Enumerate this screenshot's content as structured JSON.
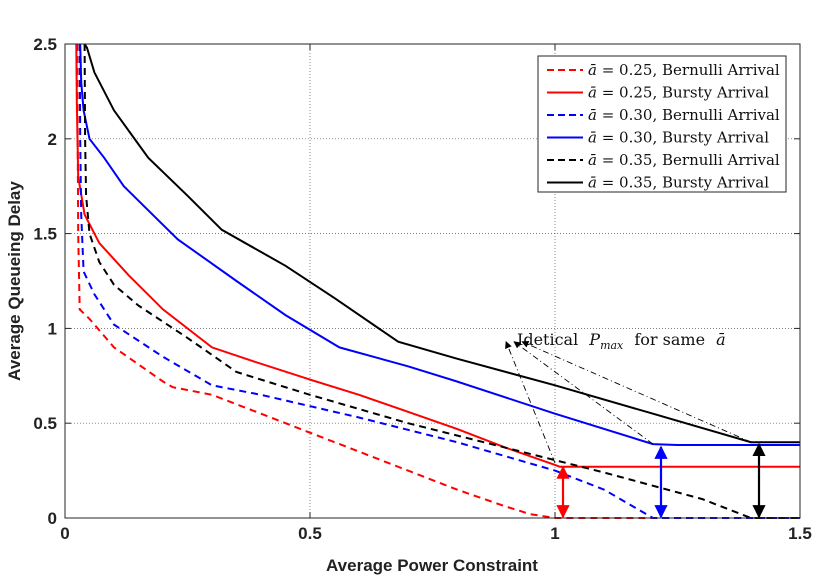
{
  "chart_data": {
    "type": "line",
    "title": "",
    "xlabel": "Average Power Constraint",
    "ylabel": "Average Queueing Delay",
    "xlim": [
      0,
      1.5
    ],
    "ylim": [
      0,
      2.5
    ],
    "xticks": [
      0,
      0.5,
      1,
      1.5
    ],
    "xtick_labels": [
      "0",
      "0.5",
      "1",
      "1.5"
    ],
    "yticks": [
      0,
      0.5,
      1,
      1.5,
      2,
      2.5
    ],
    "ytick_labels": [
      "0",
      "0.5",
      "1",
      "1.5",
      "2",
      "2.5"
    ],
    "grid": true,
    "legend_position": "top-right",
    "series": [
      {
        "name": "ā = 0.25, Bernulli Arrival",
        "label_value": "0.25",
        "label_suffix": "Bernulli Arrival",
        "color": "#ff0000",
        "dash": "dashed",
        "x": [
          0.025,
          0.026,
          0.027,
          0.03,
          0.05,
          0.1,
          0.2,
          0.22,
          0.3,
          0.4,
          0.5,
          0.6,
          0.7,
          0.8,
          0.9,
          0.95,
          1.0,
          1.5
        ],
        "y": [
          2.5,
          2.0,
          1.5,
          1.1,
          1.05,
          0.9,
          0.72,
          0.69,
          0.65,
          0.55,
          0.45,
          0.35,
          0.25,
          0.15,
          0.06,
          0.02,
          0.0,
          0.0
        ]
      },
      {
        "name": "ā = 0.25, Bursty Arrival",
        "label_value": "0.25",
        "label_suffix": "Bursty Arrival",
        "color": "#ff0000",
        "dash": "solid",
        "x": [
          0.023,
          0.024,
          0.027,
          0.04,
          0.07,
          0.13,
          0.2,
          0.3,
          0.38,
          0.5,
          0.6,
          0.7,
          0.8,
          0.9,
          1.0,
          1.01,
          1.5
        ],
        "y": [
          2.5,
          2.2,
          1.8,
          1.6,
          1.45,
          1.28,
          1.1,
          0.9,
          0.83,
          0.73,
          0.65,
          0.56,
          0.47,
          0.37,
          0.28,
          0.27,
          0.27
        ]
      },
      {
        "name": "ā = 0.30, Bernulli Arrival",
        "label_value": "0.30",
        "label_suffix": "Bernulli Arrival",
        "color": "#0000ff",
        "dash": "dashed",
        "x": [
          0.03,
          0.031,
          0.033,
          0.038,
          0.06,
          0.1,
          0.2,
          0.3,
          0.4,
          0.6,
          0.8,
          1.0,
          1.1,
          1.2,
          1.5
        ],
        "y": [
          2.5,
          2.0,
          1.6,
          1.3,
          1.18,
          1.02,
          0.85,
          0.7,
          0.65,
          0.53,
          0.4,
          0.25,
          0.15,
          0.0,
          0.0
        ]
      },
      {
        "name": "ā = 0.30, Bursty Arrival",
        "label_value": "0.30",
        "label_suffix": "Bursty Arrival",
        "color": "#0000ff",
        "dash": "solid",
        "x": [
          0.031,
          0.033,
          0.038,
          0.05,
          0.08,
          0.12,
          0.23,
          0.35,
          0.45,
          0.56,
          0.7,
          0.8,
          1.0,
          1.2,
          1.25,
          1.5
        ],
        "y": [
          2.5,
          2.3,
          2.15,
          2.0,
          1.9,
          1.75,
          1.47,
          1.25,
          1.07,
          0.9,
          0.8,
          0.72,
          0.55,
          0.39,
          0.385,
          0.385
        ]
      },
      {
        "name": "ā = 0.35, Bernulli Arrival",
        "label_value": "0.35",
        "label_suffix": "Bernulli Arrival",
        "color": "#000000",
        "dash": "dashed",
        "x": [
          0.04,
          0.041,
          0.043,
          0.05,
          0.07,
          0.1,
          0.15,
          0.25,
          0.35,
          0.5,
          0.7,
          0.9,
          1.1,
          1.3,
          1.4,
          1.5
        ],
        "y": [
          2.5,
          2.0,
          1.7,
          1.5,
          1.35,
          1.23,
          1.12,
          0.95,
          0.77,
          0.65,
          0.5,
          0.37,
          0.24,
          0.1,
          0.0,
          0.0
        ]
      },
      {
        "name": "ā = 0.35, Bursty Arrival",
        "label_value": "0.35",
        "label_suffix": "Bursty Arrival",
        "color": "#000000",
        "dash": "solid",
        "x": [
          0.04,
          0.045,
          0.06,
          0.1,
          0.17,
          0.25,
          0.32,
          0.45,
          0.55,
          0.68,
          0.8,
          1.0,
          1.2,
          1.4,
          1.5
        ],
        "y": [
          2.5,
          2.48,
          2.35,
          2.15,
          1.9,
          1.7,
          1.52,
          1.33,
          1.16,
          0.93,
          0.84,
          0.7,
          0.55,
          0.4,
          0.4
        ]
      }
    ],
    "annotation": {
      "text_prefix": "Idetical",
      "text_symbol": "P",
      "text_subscript": "max",
      "text_middle": "for same",
      "text_abar": "ā",
      "anchor": [
        0.9,
        0.93
      ],
      "targets": [
        [
          1.0,
          0.29
        ],
        [
          1.2,
          0.39
        ],
        [
          1.4,
          0.4
        ]
      ]
    },
    "arrows": [
      {
        "x": 1.0,
        "y0": 0.0,
        "y1": 0.28,
        "color": "#ff0000"
      },
      {
        "x": 1.2,
        "y0": 0.0,
        "y1": 0.385,
        "color": "#0000ff"
      },
      {
        "x": 1.4,
        "y0": 0.0,
        "y1": 0.4,
        "color": "#000000"
      }
    ]
  }
}
